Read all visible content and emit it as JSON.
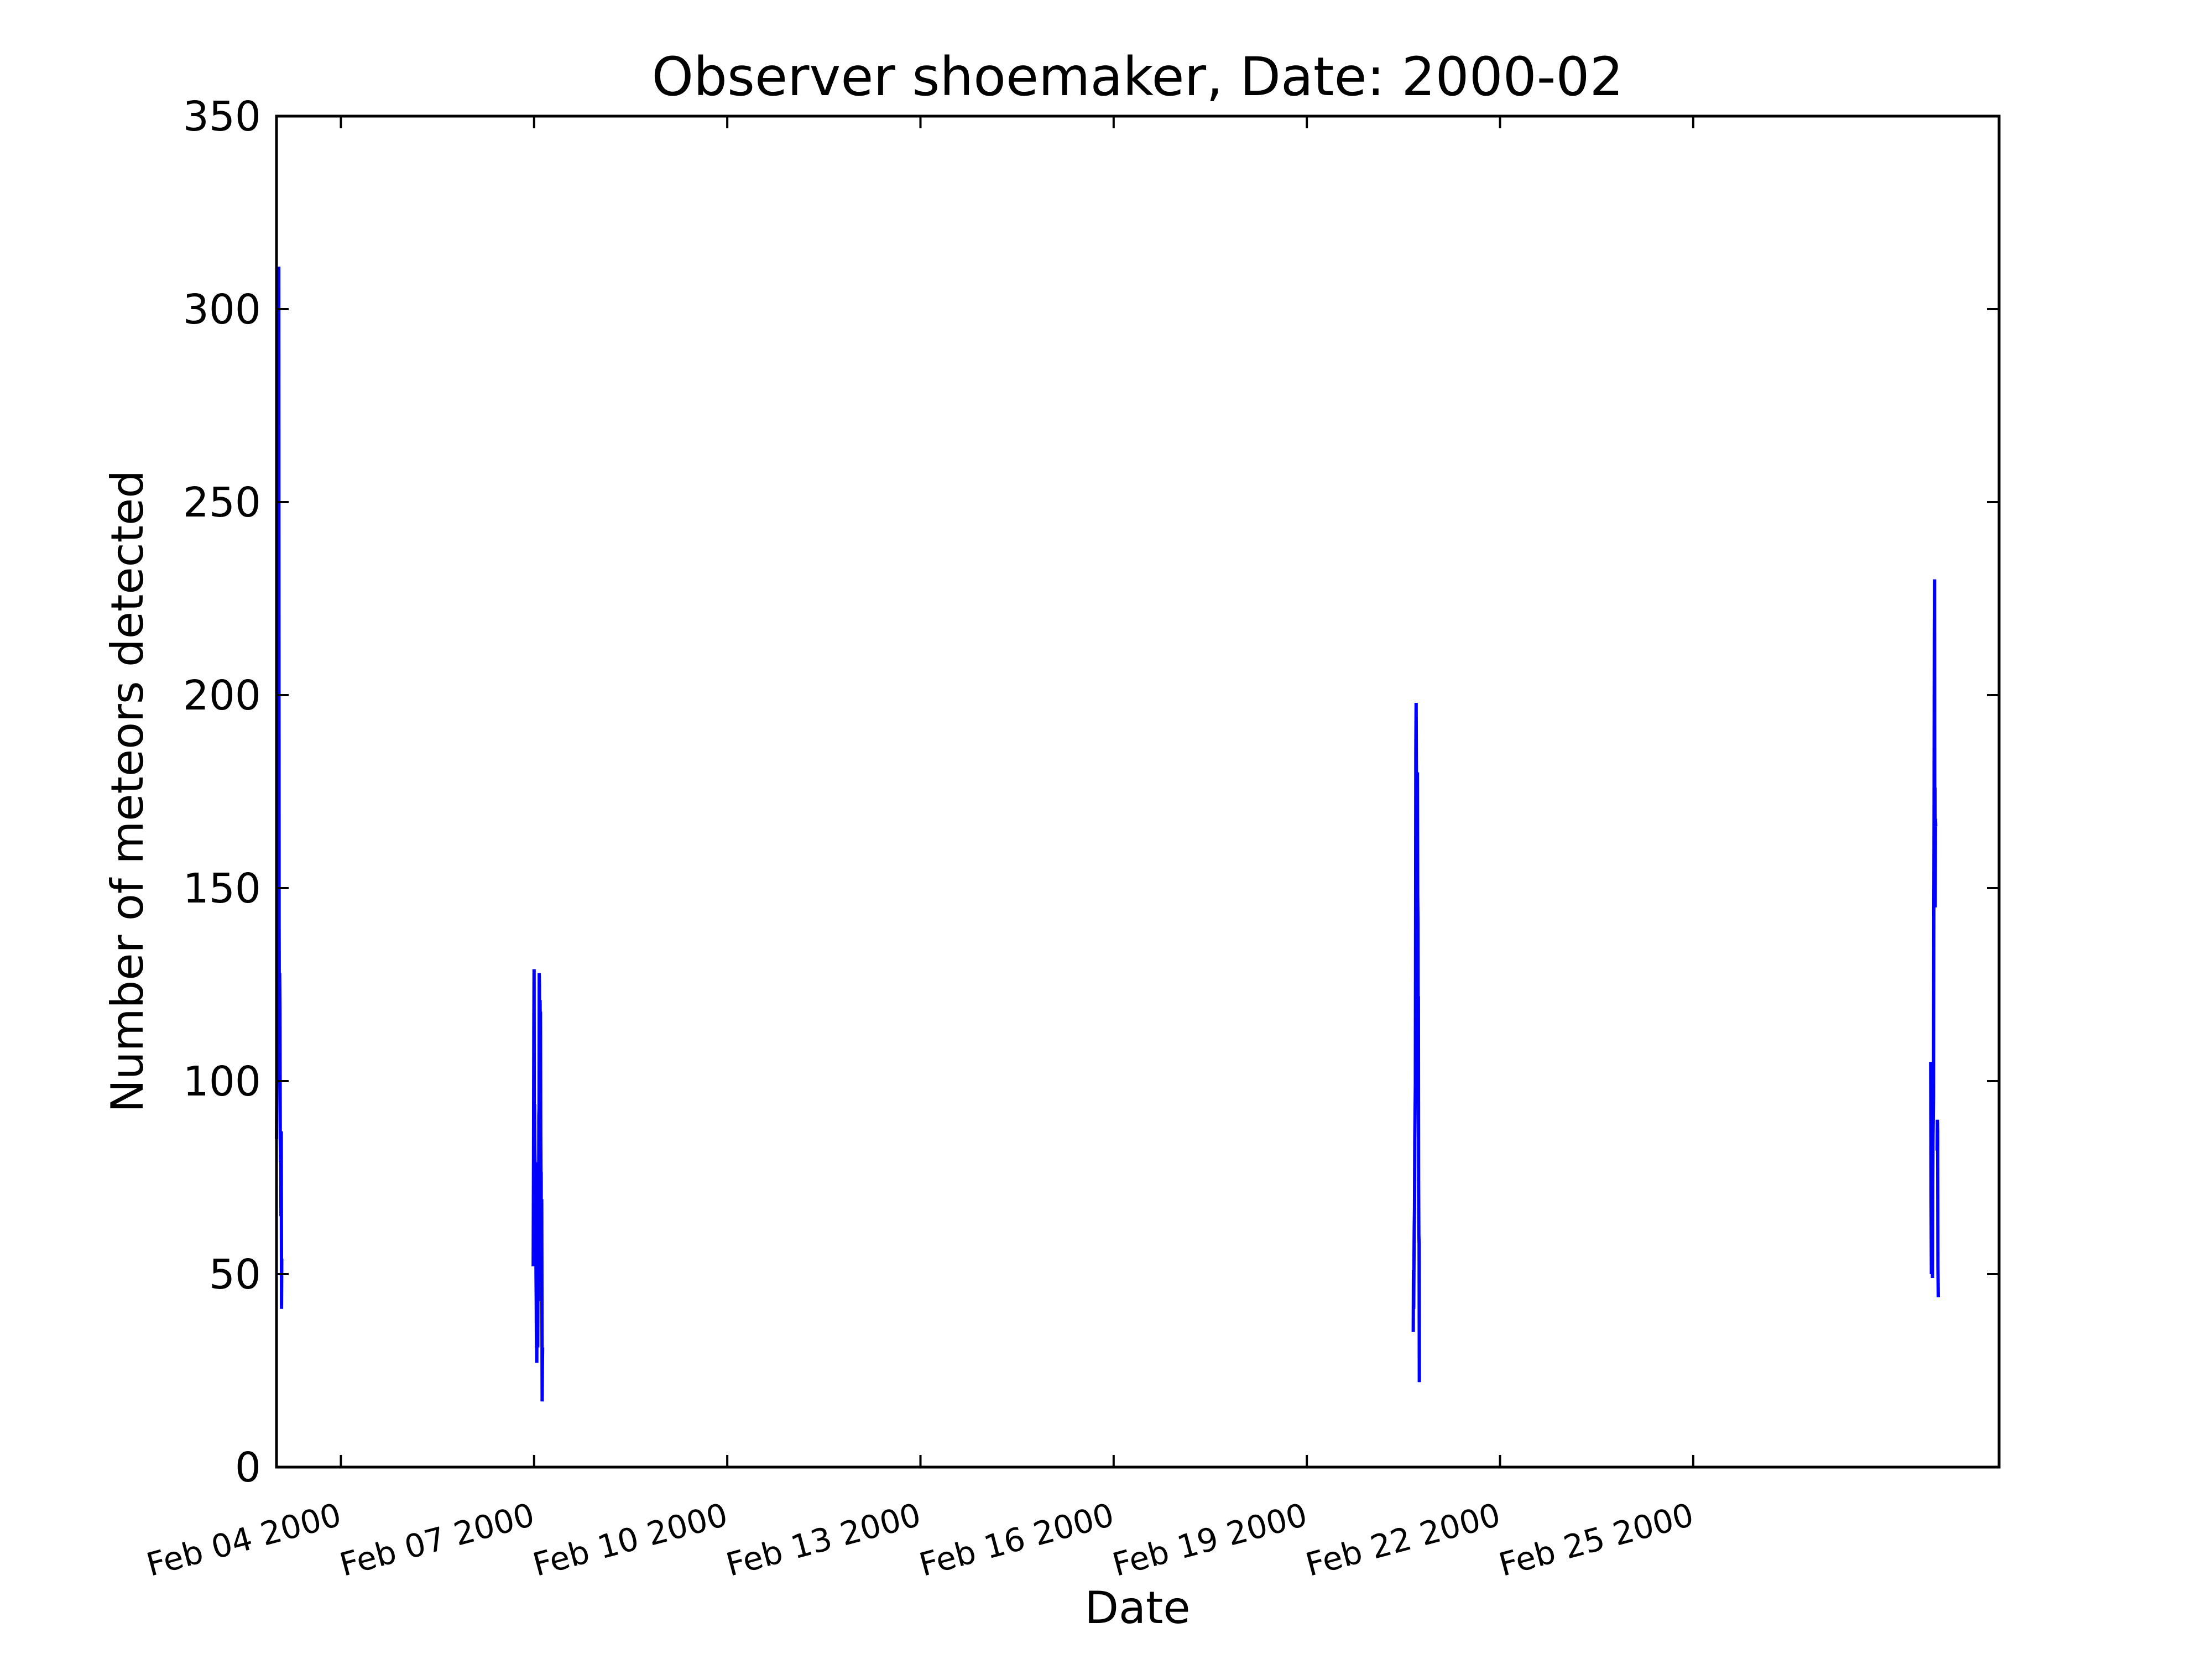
{
  "chart_data": {
    "type": "line",
    "title": "Observer shoemaker, Date: 2000-02",
    "xlabel": "Date",
    "ylabel": "Number of meteors detected",
    "xlim": [
      "2000-02-03T00:00",
      "2000-02-29T18:00"
    ],
    "ylim": [
      0,
      350
    ],
    "yticks": [
      0,
      50,
      100,
      150,
      200,
      250,
      300,
      350
    ],
    "xticks": [
      {
        "date": "2000-02-04",
        "label": "Feb 04 2000"
      },
      {
        "date": "2000-02-07",
        "label": "Feb 07 2000"
      },
      {
        "date": "2000-02-10",
        "label": "Feb 10 2000"
      },
      {
        "date": "2000-02-13",
        "label": "Feb 13 2000"
      },
      {
        "date": "2000-02-16",
        "label": "Feb 16 2000"
      },
      {
        "date": "2000-02-19",
        "label": "Feb 19 2000"
      },
      {
        "date": "2000-02-22",
        "label": "Feb 22 2000"
      },
      {
        "date": "2000-02-25",
        "label": "Feb 25 2000"
      }
    ],
    "grid": false,
    "color": "#0000ff",
    "segments": [
      [
        [
          "2000-02-03T00:00",
          85
        ],
        [
          "2000-02-03T00:05",
          96
        ],
        [
          "2000-02-03T00:12",
          113
        ],
        [
          "2000-02-03T00:20",
          126
        ],
        [
          "2000-02-03T00:26",
          134
        ],
        [
          "2000-02-03T00:32",
          137
        ],
        [
          "2000-02-03T00:38",
          137
        ],
        [
          "2000-02-03T00:44",
          170
        ],
        [
          "2000-02-03T00:51",
          311
        ],
        [
          "2000-02-03T00:58",
          140
        ],
        [
          "2000-02-03T01:04",
          112
        ],
        [
          "2000-02-03T01:10",
          128
        ],
        [
          "2000-02-03T01:17",
          119
        ],
        [
          "2000-02-03T01:24",
          85
        ],
        [
          "2000-02-03T01:30",
          79
        ],
        [
          "2000-02-03T01:35",
          84
        ],
        [
          "2000-02-03T01:40",
          65
        ],
        [
          "2000-02-03T01:46",
          87
        ],
        [
          "2000-02-03T01:52",
          41
        ],
        [
          "2000-02-03T01:58",
          54
        ]
      ],
      [
        [
          "2000-02-06T23:40",
          52
        ],
        [
          "2000-02-06T23:48",
          80
        ],
        [
          "2000-02-06T23:55",
          115
        ],
        [
          "2000-02-07T00:00",
          129
        ],
        [
          "2000-02-07T00:04",
          90
        ],
        [
          "2000-02-07T00:08",
          85
        ],
        [
          "2000-02-07T00:12",
          94
        ],
        [
          "2000-02-07T00:17",
          82
        ],
        [
          "2000-02-07T00:23",
          77
        ],
        [
          "2000-02-07T00:28",
          76
        ],
        [
          "2000-02-07T00:33",
          79
        ],
        [
          "2000-02-07T00:38",
          73
        ],
        [
          "2000-02-07T00:43",
          50
        ],
        [
          "2000-02-07T00:48",
          43
        ],
        [
          "2000-02-07T00:53",
          31
        ],
        [
          "2000-02-07T00:57",
          45
        ],
        [
          "2000-02-07T01:01",
          27
        ],
        [
          "2000-02-07T01:05",
          55
        ]
      ],
      [
        [
          "2000-02-07T01:22",
          31
        ],
        [
          "2000-02-07T01:27",
          49
        ],
        [
          "2000-02-07T01:32",
          44
        ],
        [
          "2000-02-07T01:36",
          43
        ],
        [
          "2000-02-07T01:41",
          58
        ],
        [
          "2000-02-07T01:46",
          91
        ],
        [
          "2000-02-07T01:51",
          93
        ],
        [
          "2000-02-07T01:55",
          128
        ],
        [
          "2000-02-07T02:00",
          125
        ],
        [
          "2000-02-07T02:05",
          90
        ],
        [
          "2000-02-07T02:09",
          76
        ],
        [
          "2000-02-07T02:14",
          121
        ],
        [
          "2000-02-07T02:18",
          113
        ],
        [
          "2000-02-07T02:23",
          118
        ],
        [
          "2000-02-07T02:28",
          86
        ],
        [
          "2000-02-07T02:33",
          76
        ],
        [
          "2000-02-07T02:38",
          76
        ],
        [
          "2000-02-07T02:42",
          48
        ],
        [
          "2000-02-07T02:46",
          69
        ],
        [
          "2000-02-07T02:51",
          69
        ],
        [
          "2000-02-07T02:56",
          42
        ],
        [
          "2000-02-07T03:01",
          17
        ],
        [
          "2000-02-07T03:06",
          26
        ],
        [
          "2000-02-07T03:11",
          31
        ]
      ],
      [
        [
          "2000-02-20T15:40",
          35
        ],
        [
          "2000-02-20T15:45",
          51
        ],
        [
          "2000-02-20T15:50",
          41
        ],
        [
          "2000-02-20T15:56",
          53
        ],
        [
          "2000-02-20T16:02",
          62
        ],
        [
          "2000-02-20T16:08",
          67
        ],
        [
          "2000-02-20T16:14",
          85
        ],
        [
          "2000-02-20T16:20",
          92
        ],
        [
          "2000-02-20T16:26",
          99
        ],
        [
          "2000-02-20T16:33",
          145
        ],
        [
          "2000-02-20T16:38",
          186
        ],
        [
          "2000-02-20T16:44",
          198
        ],
        [
          "2000-02-20T16:50",
          181
        ],
        [
          "2000-02-20T16:56",
          138
        ],
        [
          "2000-02-20T17:02",
          126
        ],
        [
          "2000-02-20T17:07",
          114
        ],
        [
          "2000-02-20T17:13",
          180
        ],
        [
          "2000-02-20T17:18",
          148
        ],
        [
          "2000-02-20T17:24",
          141
        ],
        [
          "2000-02-20T17:29",
          115
        ],
        [
          "2000-02-20T17:34",
          122
        ],
        [
          "2000-02-20T17:40",
          74
        ],
        [
          "2000-02-20T17:45",
          60
        ],
        [
          "2000-02-20T17:51",
          58
        ],
        [
          "2000-02-20T17:56",
          22
        ]
      ],
      [
        [
          "2000-02-28T16:30",
          105
        ],
        [
          "2000-02-28T16:38",
          72
        ],
        [
          "2000-02-28T16:46",
          50
        ],
        [
          "2000-02-28T16:54",
          64
        ]
      ],
      [
        [
          "2000-02-28T17:10",
          49
        ],
        [
          "2000-02-28T17:16",
          73
        ],
        [
          "2000-02-28T17:22",
          86
        ],
        [
          "2000-02-28T17:28",
          91
        ],
        [
          "2000-02-28T17:34",
          96
        ],
        [
          "2000-02-28T17:40",
          140
        ],
        [
          "2000-02-28T17:46",
          170
        ],
        [
          "2000-02-28T17:52",
          218
        ],
        [
          "2000-02-28T17:57",
          230
        ],
        [
          "2000-02-28T18:02",
          158
        ],
        [
          "2000-02-28T18:07",
          176
        ],
        [
          "2000-02-28T18:12",
          145
        ],
        [
          "2000-02-28T18:17",
          168
        ],
        [
          "2000-02-28T18:22",
          166
        ]
      ],
      [
        [
          "2000-02-28T18:55",
          82
        ],
        [
          "2000-02-28T19:00",
          90
        ],
        [
          "2000-02-28T19:06",
          87
        ],
        [
          "2000-02-28T19:12",
          52
        ],
        [
          "2000-02-28T19:20",
          44
        ]
      ]
    ]
  }
}
